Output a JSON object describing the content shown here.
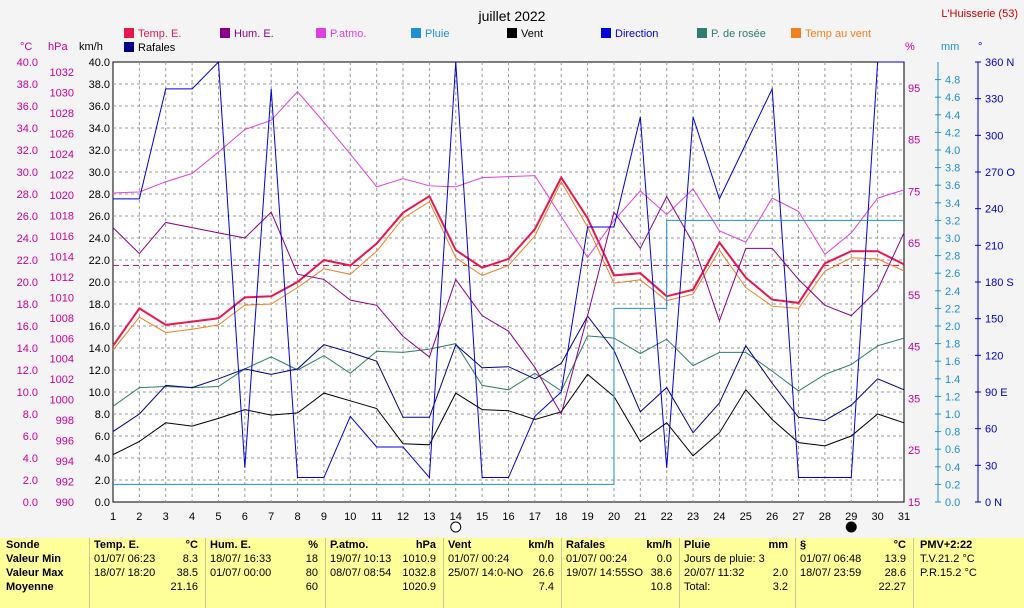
{
  "header": {
    "title": "juillet 2022",
    "station": "L'Huisserie (53)"
  },
  "legend": [
    {
      "name": "Temp. E.",
      "color": "#e8174f"
    },
    {
      "name": "Hum. E.",
      "color": "#8b008b"
    },
    {
      "name": "P.atmo.",
      "color": "#e040e0"
    },
    {
      "name": "Pluie",
      "color": "#1e90d6"
    },
    {
      "name": "Vent",
      "color": "#000000"
    },
    {
      "name": "Direction",
      "color": "#0000dd"
    },
    {
      "name": "P. de rosée",
      "color": "#2e7d6e"
    },
    {
      "name": "Temp au vent",
      "color": "#f08020"
    },
    {
      "name": "Rafales",
      "color": "#00008b"
    }
  ],
  "axis_units": {
    "temp": "°C",
    "press": "hPa",
    "wind": "km/h",
    "hum": "%",
    "rain": "mm",
    "dir": "°"
  },
  "axes": {
    "temp_ticks": [
      "40.0",
      "38.0",
      "36.0",
      "34.0",
      "32.0",
      "30.0",
      "28.0",
      "26.0",
      "24.0",
      "22.0",
      "20.0",
      "18.0",
      "16.0",
      "14.0",
      "12.0",
      "10.0",
      "8.0",
      "6.0",
      "4.0",
      "2.0",
      "0.0"
    ],
    "press_ticks": [
      "1032",
      "1030",
      "1028",
      "1026",
      "1024",
      "1022",
      "1020",
      "1018",
      "1016",
      "1014",
      "1012",
      "1010",
      "1008",
      "1006",
      "1004",
      "1002",
      "1000",
      "998",
      "996",
      "994",
      "992",
      "990"
    ],
    "wind_ticks": [
      "40.0",
      "38.0",
      "36.0",
      "34.0",
      "32.0",
      "30.0",
      "28.0",
      "26.0",
      "24.0",
      "22.0",
      "20.0",
      "18.0",
      "16.0",
      "14.0",
      "12.0",
      "10.0",
      "8.0",
      "6.0",
      "4.0",
      "2.0",
      "0.0"
    ],
    "hum_ticks": [
      "95",
      "85",
      "75",
      "65",
      "55",
      "45",
      "35",
      "25",
      "15"
    ],
    "rain_ticks": [
      "4.8",
      "4.6",
      "4.4",
      "4.2",
      "4.0",
      "3.8",
      "3.6",
      "3.4",
      "3.2",
      "3.0",
      "2.8",
      "2.6",
      "2.4",
      "2.2",
      "2.0",
      "1.8",
      "1.6",
      "1.4",
      "1.2",
      "1.0",
      "0.8",
      "0.6",
      "0.4",
      "0.2",
      "0.0"
    ],
    "dir_ticks": [
      "360 N",
      "330",
      "300",
      "270 O",
      "240",
      "210",
      "180 S",
      "150",
      "120",
      "90 E",
      "60",
      "30",
      "0 N"
    ],
    "x_ticks": [
      "1",
      "2",
      "3",
      "4",
      "5",
      "6",
      "7",
      "8",
      "9",
      "10",
      "11",
      "12",
      "13",
      "14",
      "15",
      "16",
      "17",
      "18",
      "19",
      "20",
      "21",
      "22",
      "23",
      "24",
      "25",
      "26",
      "27",
      "28",
      "29",
      "30",
      "31"
    ]
  },
  "moon": {
    "first": "14",
    "second": "29"
  },
  "chart_data": {
    "type": "line",
    "x": [
      1,
      2,
      3,
      4,
      5,
      6,
      7,
      8,
      9,
      10,
      11,
      12,
      13,
      14,
      15,
      16,
      17,
      18,
      19,
      20,
      21,
      22,
      23,
      24,
      25,
      26,
      27,
      28,
      29,
      30,
      31
    ],
    "ylim_temp": [
      0,
      40
    ],
    "ylim_press": [
      990,
      1033
    ],
    "ylim_hum": [
      15,
      100
    ],
    "ylim_rain": [
      0,
      5.0
    ],
    "ylim_dir": [
      0,
      360
    ],
    "reference_line": {
      "axis": "temp",
      "value": 21.5,
      "color": "#e8174f"
    },
    "series": [
      {
        "name": "Temp. E.",
        "axis": "temp",
        "color": "#e8174f",
        "width": 2,
        "values": [
          14.2,
          17.6,
          16.1,
          16.4,
          16.7,
          18.6,
          18.7,
          20.0,
          22.0,
          21.5,
          23.5,
          26.3,
          27.8,
          22.9,
          21.3,
          22.1,
          24.8,
          29.5,
          25.8,
          20.6,
          20.8,
          18.7,
          19.3,
          23.6,
          20.4,
          18.4,
          18.1,
          21.7,
          22.8,
          22.8,
          21.6
        ]
      },
      {
        "name": "Temp au vent",
        "axis": "temp",
        "color": "#f08020",
        "width": 1,
        "values": [
          13.8,
          16.8,
          15.4,
          15.7,
          16.1,
          17.9,
          18.0,
          19.5,
          21.2,
          20.7,
          22.8,
          25.8,
          27.3,
          22.2,
          20.6,
          21.5,
          24.2,
          29.1,
          25.0,
          19.9,
          20.2,
          18.3,
          18.9,
          22.9,
          19.5,
          17.8,
          17.6,
          21.0,
          22.2,
          22.1,
          21.0
        ]
      },
      {
        "name": "P. de rosée",
        "axis": "temp",
        "color": "#2e7d6e",
        "width": 1,
        "values": [
          8.7,
          10.4,
          10.5,
          10.4,
          10.5,
          12.1,
          13.2,
          12.0,
          13.3,
          11.7,
          13.7,
          13.6,
          13.9,
          14.4,
          10.6,
          10.2,
          11.7,
          10.1,
          15.1,
          14.9,
          13.5,
          14.8,
          12.4,
          13.6,
          13.6,
          11.9,
          10.1,
          11.6,
          12.5,
          14.2,
          14.9
        ]
      },
      {
        "name": "Vent",
        "axis": "wind",
        "color": "#000000",
        "width": 1,
        "values": [
          4.3,
          5.5,
          7.2,
          6.9,
          7.6,
          8.4,
          7.9,
          8.1,
          9.9,
          9.2,
          8.5,
          5.3,
          5.2,
          9.9,
          8.4,
          8.3,
          7.5,
          8.2,
          11.6,
          9.6,
          5.5,
          7.2,
          4.2,
          6.3,
          10.2,
          7.5,
          5.4,
          5.1,
          6.0,
          8.0,
          7.2
        ]
      },
      {
        "name": "Rafales",
        "axis": "wind",
        "color": "#00008b",
        "width": 1,
        "values": [
          6.4,
          8.0,
          10.6,
          10.4,
          11.2,
          12.1,
          11.6,
          12.1,
          14.3,
          13.6,
          12.8,
          7.7,
          7.7,
          14.3,
          12.2,
          12.3,
          11.2,
          12.6,
          16.9,
          13.8,
          8.2,
          10.4,
          6.3,
          9.0,
          14.2,
          10.8,
          7.7,
          7.4,
          8.8,
          11.2,
          10.2
        ]
      },
      {
        "name": "P.atmo.",
        "axis": "press",
        "color": "#e040e0",
        "width": 1,
        "values": [
          1020.2,
          1020.3,
          1021.3,
          1022.1,
          1024.2,
          1026.4,
          1027.3,
          1030.1,
          1027.1,
          1024.0,
          1020.8,
          1021.6,
          1020.9,
          1020.8,
          1021.7,
          1021.8,
          1021.9,
          1017.9,
          1013.9,
          1017.5,
          1020.4,
          1018.1,
          1020.6,
          1016.5,
          1015.4,
          1019.7,
          1018.4,
          1014.2,
          1016.3,
          1019.7,
          1020.5
        ]
      },
      {
        "name": "Hum. E.",
        "axis": "hum",
        "color": "#8b008b",
        "width": 1,
        "values": [
          68,
          63,
          69,
          68,
          67,
          66,
          71,
          59,
          58,
          54,
          53,
          47,
          43,
          58,
          51,
          48,
          41,
          32,
          51,
          71,
          64,
          74,
          65,
          50,
          64,
          64,
          58,
          53,
          51,
          56,
          67
        ]
      },
      {
        "name": "Direction",
        "axis": "dir",
        "color": "#0000dd",
        "width": 1,
        "values": [
          248,
          248,
          338,
          338,
          360,
          28,
          338,
          20,
          20,
          70,
          45,
          45,
          20,
          360,
          20,
          20,
          70,
          90,
          225,
          225,
          315,
          28,
          315,
          248,
          293,
          338,
          20,
          20,
          20,
          360,
          360
        ]
      },
      {
        "name": "Pluie",
        "axis": "rain",
        "color": "#1e90d6",
        "width": 1,
        "step": true,
        "values": [
          0.2,
          0.2,
          0.2,
          0.2,
          0.2,
          0.2,
          0.2,
          0.2,
          0.2,
          0.2,
          0.2,
          0.2,
          0.2,
          0.2,
          0.2,
          0.2,
          0.2,
          0.2,
          0.2,
          2.2,
          2.2,
          3.2,
          3.2,
          3.2,
          3.2,
          3.2,
          3.2,
          3.2,
          3.2,
          3.2,
          3.2
        ]
      }
    ]
  },
  "stats": {
    "labels": {
      "sonde": "Sonde",
      "min": "Valeur Min",
      "max": "Valeur Max",
      "moy": "Moyenne"
    },
    "temp": {
      "title": "Temp. E.",
      "unit": "°C",
      "min_date": "01/07/",
      "min_time": "06:23",
      "min": "8.3",
      "max_date": "18/07/",
      "max_time": "18:20",
      "max": "38.5",
      "avg": "21.16"
    },
    "hum": {
      "title": "Hum. E.",
      "unit": "%",
      "min_date": "18/07/",
      "min_time": "16:33",
      "min": "18",
      "max_date": "01/07/",
      "max_time": "00:00",
      "max": "80",
      "avg": "60"
    },
    "press": {
      "title": "P.atmo.",
      "unit": "hPa",
      "min_date": "19/07/",
      "min_time": "10:13",
      "min": "1010.9",
      "max_date": "08/07/",
      "max_time": "08:54",
      "max": "1032.8",
      "avg": "1020.9"
    },
    "wind": {
      "title": "Vent",
      "unit": "km/h",
      "min_date": "01/07/",
      "min_time": "00:24",
      "min": "0.0",
      "max_date": "25/07/",
      "max_time": "14:0-NO",
      "max": "26.6",
      "avg": "7.4"
    },
    "gust": {
      "title": "Rafales",
      "unit": "km/h",
      "min_date": "01/07/",
      "min_time": "00:24",
      "min": "0.0",
      "max_date": "19/07/",
      "max_time": "14:55SO",
      "max": "38.6",
      "avg": "10.8"
    },
    "rain": {
      "title": "Pluie",
      "unit": "mm",
      "days_label": "Jours de pluie: 3",
      "max_date": "20/07/",
      "max_time": "11:32",
      "max": "2.0",
      "total_label": "Total:",
      "total": "3.2"
    },
    "dew": {
      "title": "§",
      "unit": "°C",
      "min_date": "01/07/",
      "min_time": "06:48",
      "min": "13.9",
      "max_date": "18/07/",
      "max_time": "23:59",
      "max": "28.6",
      "avg": "22.27"
    },
    "pmv": {
      "title": "PMV+2:22",
      "tv": "T.V.21.2 °C",
      "pr": "P.R.15.2 °C"
    }
  }
}
